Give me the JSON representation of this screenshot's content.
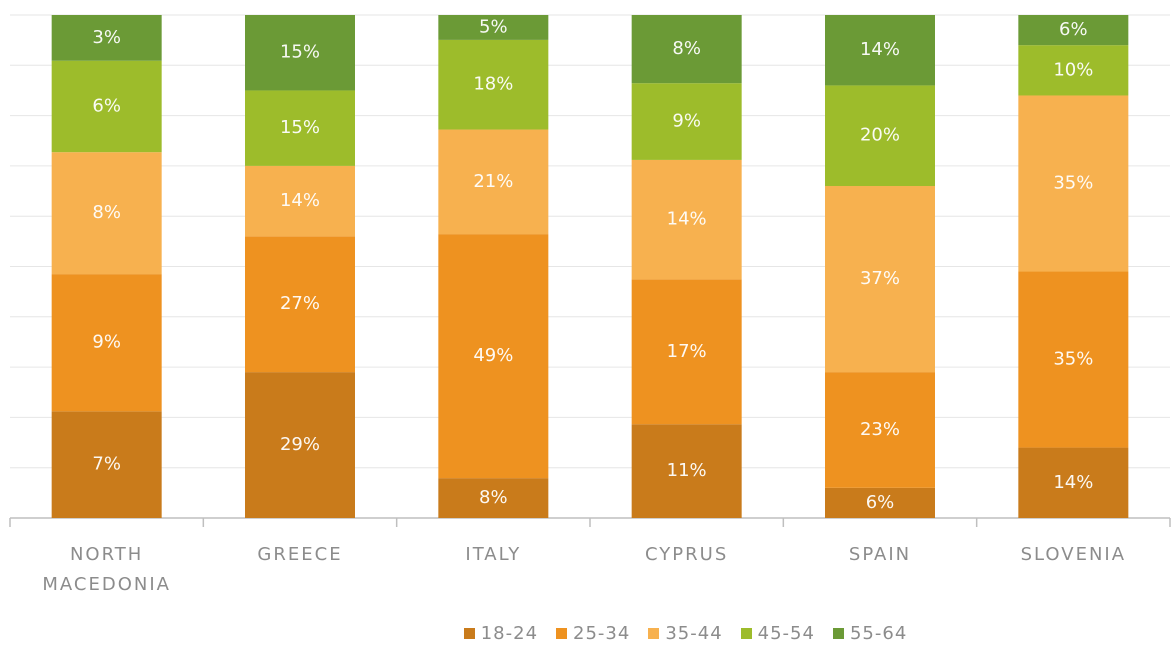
{
  "chart_data": {
    "type": "bar",
    "stacking": "percent",
    "categories": [
      "NORTH MACEDONIA",
      "GREECE",
      "ITALY",
      "CYPRUS",
      "SPAIN",
      "SLOVENIA"
    ],
    "series": [
      {
        "name": "18-24",
        "color": "#c97b1b",
        "values": [
          7,
          29,
          8,
          11,
          6,
          14
        ],
        "value_labels": [
          "7%",
          "29%",
          "8%",
          "11%",
          "6%",
          "14%"
        ]
      },
      {
        "name": "25-34",
        "color": "#ee9220",
        "values": [
          9,
          27,
          49,
          17,
          23,
          35
        ],
        "value_labels": [
          "9%",
          "27%",
          "49%",
          "17%",
          "23%",
          "35%"
        ]
      },
      {
        "name": "35-44",
        "color": "#f7b14f",
        "values": [
          8,
          14,
          21,
          14,
          37,
          35
        ],
        "value_labels": [
          "8%",
          "14%",
          "21%",
          "14%",
          "37%",
          "35%"
        ]
      },
      {
        "name": "45-54",
        "color": "#9dbc2b",
        "values": [
          6,
          15,
          18,
          9,
          20,
          10
        ],
        "value_labels": [
          "6%",
          "15%",
          "18%",
          "9%",
          "20%",
          "10%"
        ]
      },
      {
        "name": "55-64",
        "color": "#6b9a36",
        "values": [
          3,
          15,
          5,
          8,
          14,
          6
        ],
        "value_labels": [
          "3%",
          "15%",
          "5%",
          "8%",
          "14%",
          "6%"
        ]
      }
    ],
    "ylim": [
      0,
      100
    ],
    "yticks": [
      0,
      10,
      20,
      30,
      40,
      50,
      60,
      70,
      80,
      90,
      100
    ],
    "grid": true
  }
}
